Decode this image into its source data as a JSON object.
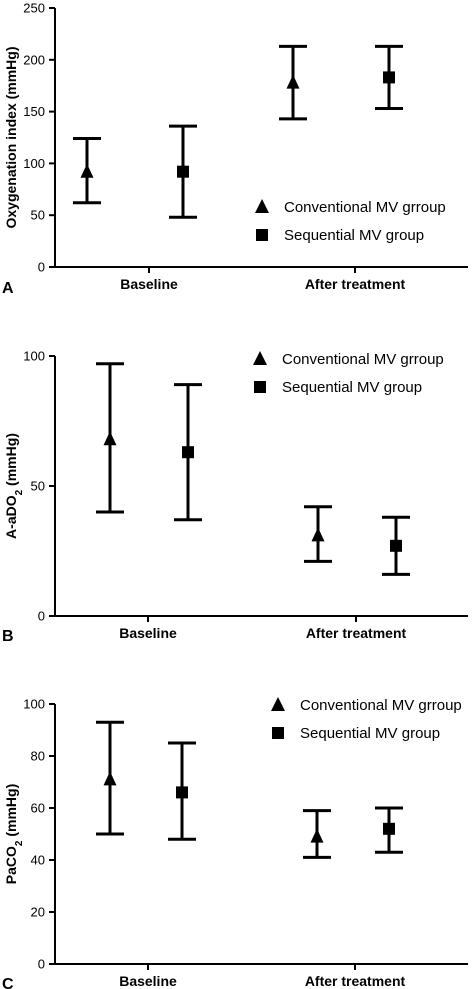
{
  "chart_data": [
    {
      "panel": "A",
      "type": "scatter",
      "categories": [
        "Baseline",
        "After treatment"
      ],
      "ylabel": "Oxygenation index (mmHg)",
      "ylim": [
        0,
        250
      ],
      "yticks": [
        0,
        50,
        100,
        150,
        200,
        250
      ],
      "legend": {
        "position": "bottom-right"
      },
      "series": [
        {
          "name": "Conventional MV grroup",
          "marker": "triangle",
          "mean": [
            92,
            178
          ],
          "lower": [
            62,
            143
          ],
          "upper": [
            124,
            213
          ]
        },
        {
          "name": "Sequential MV group",
          "marker": "square",
          "mean": [
            92,
            183
          ],
          "lower": [
            48,
            153
          ],
          "upper": [
            136,
            213
          ]
        }
      ]
    },
    {
      "panel": "B",
      "type": "scatter",
      "categories": [
        "Baseline",
        "After treatment"
      ],
      "ylabel": "A-aDO",
      "ylabel_sub": "2",
      "ylabel_unit": "(mmHg)",
      "ylim": [
        0,
        100
      ],
      "yticks": [
        0,
        50,
        100
      ],
      "legend": {
        "position": "top-right"
      },
      "series": [
        {
          "name": "Conventional MV grroup",
          "marker": "triangle",
          "mean": [
            68,
            31
          ],
          "lower": [
            40,
            21
          ],
          "upper": [
            97,
            42
          ]
        },
        {
          "name": "Sequential MV group",
          "marker": "square",
          "mean": [
            63,
            27
          ],
          "lower": [
            37,
            16
          ],
          "upper": [
            89,
            38
          ]
        }
      ]
    },
    {
      "panel": "C",
      "type": "scatter",
      "categories": [
        "Baseline",
        "After treatment"
      ],
      "ylabel": "PaCO",
      "ylabel_sub": "2",
      "ylabel_unit": "(mmHg)",
      "ylim": [
        0,
        100
      ],
      "yticks": [
        0,
        20,
        40,
        60,
        80,
        100
      ],
      "legend": {
        "position": "top-right"
      },
      "series": [
        {
          "name": "Conventional MV grroup",
          "marker": "triangle",
          "mean": [
            71,
            49
          ],
          "lower": [
            50,
            41
          ],
          "upper": [
            93,
            59
          ]
        },
        {
          "name": "Sequential MV group",
          "marker": "square",
          "mean": [
            66,
            52
          ],
          "lower": [
            48,
            43
          ],
          "upper": [
            85,
            60
          ]
        }
      ]
    }
  ]
}
